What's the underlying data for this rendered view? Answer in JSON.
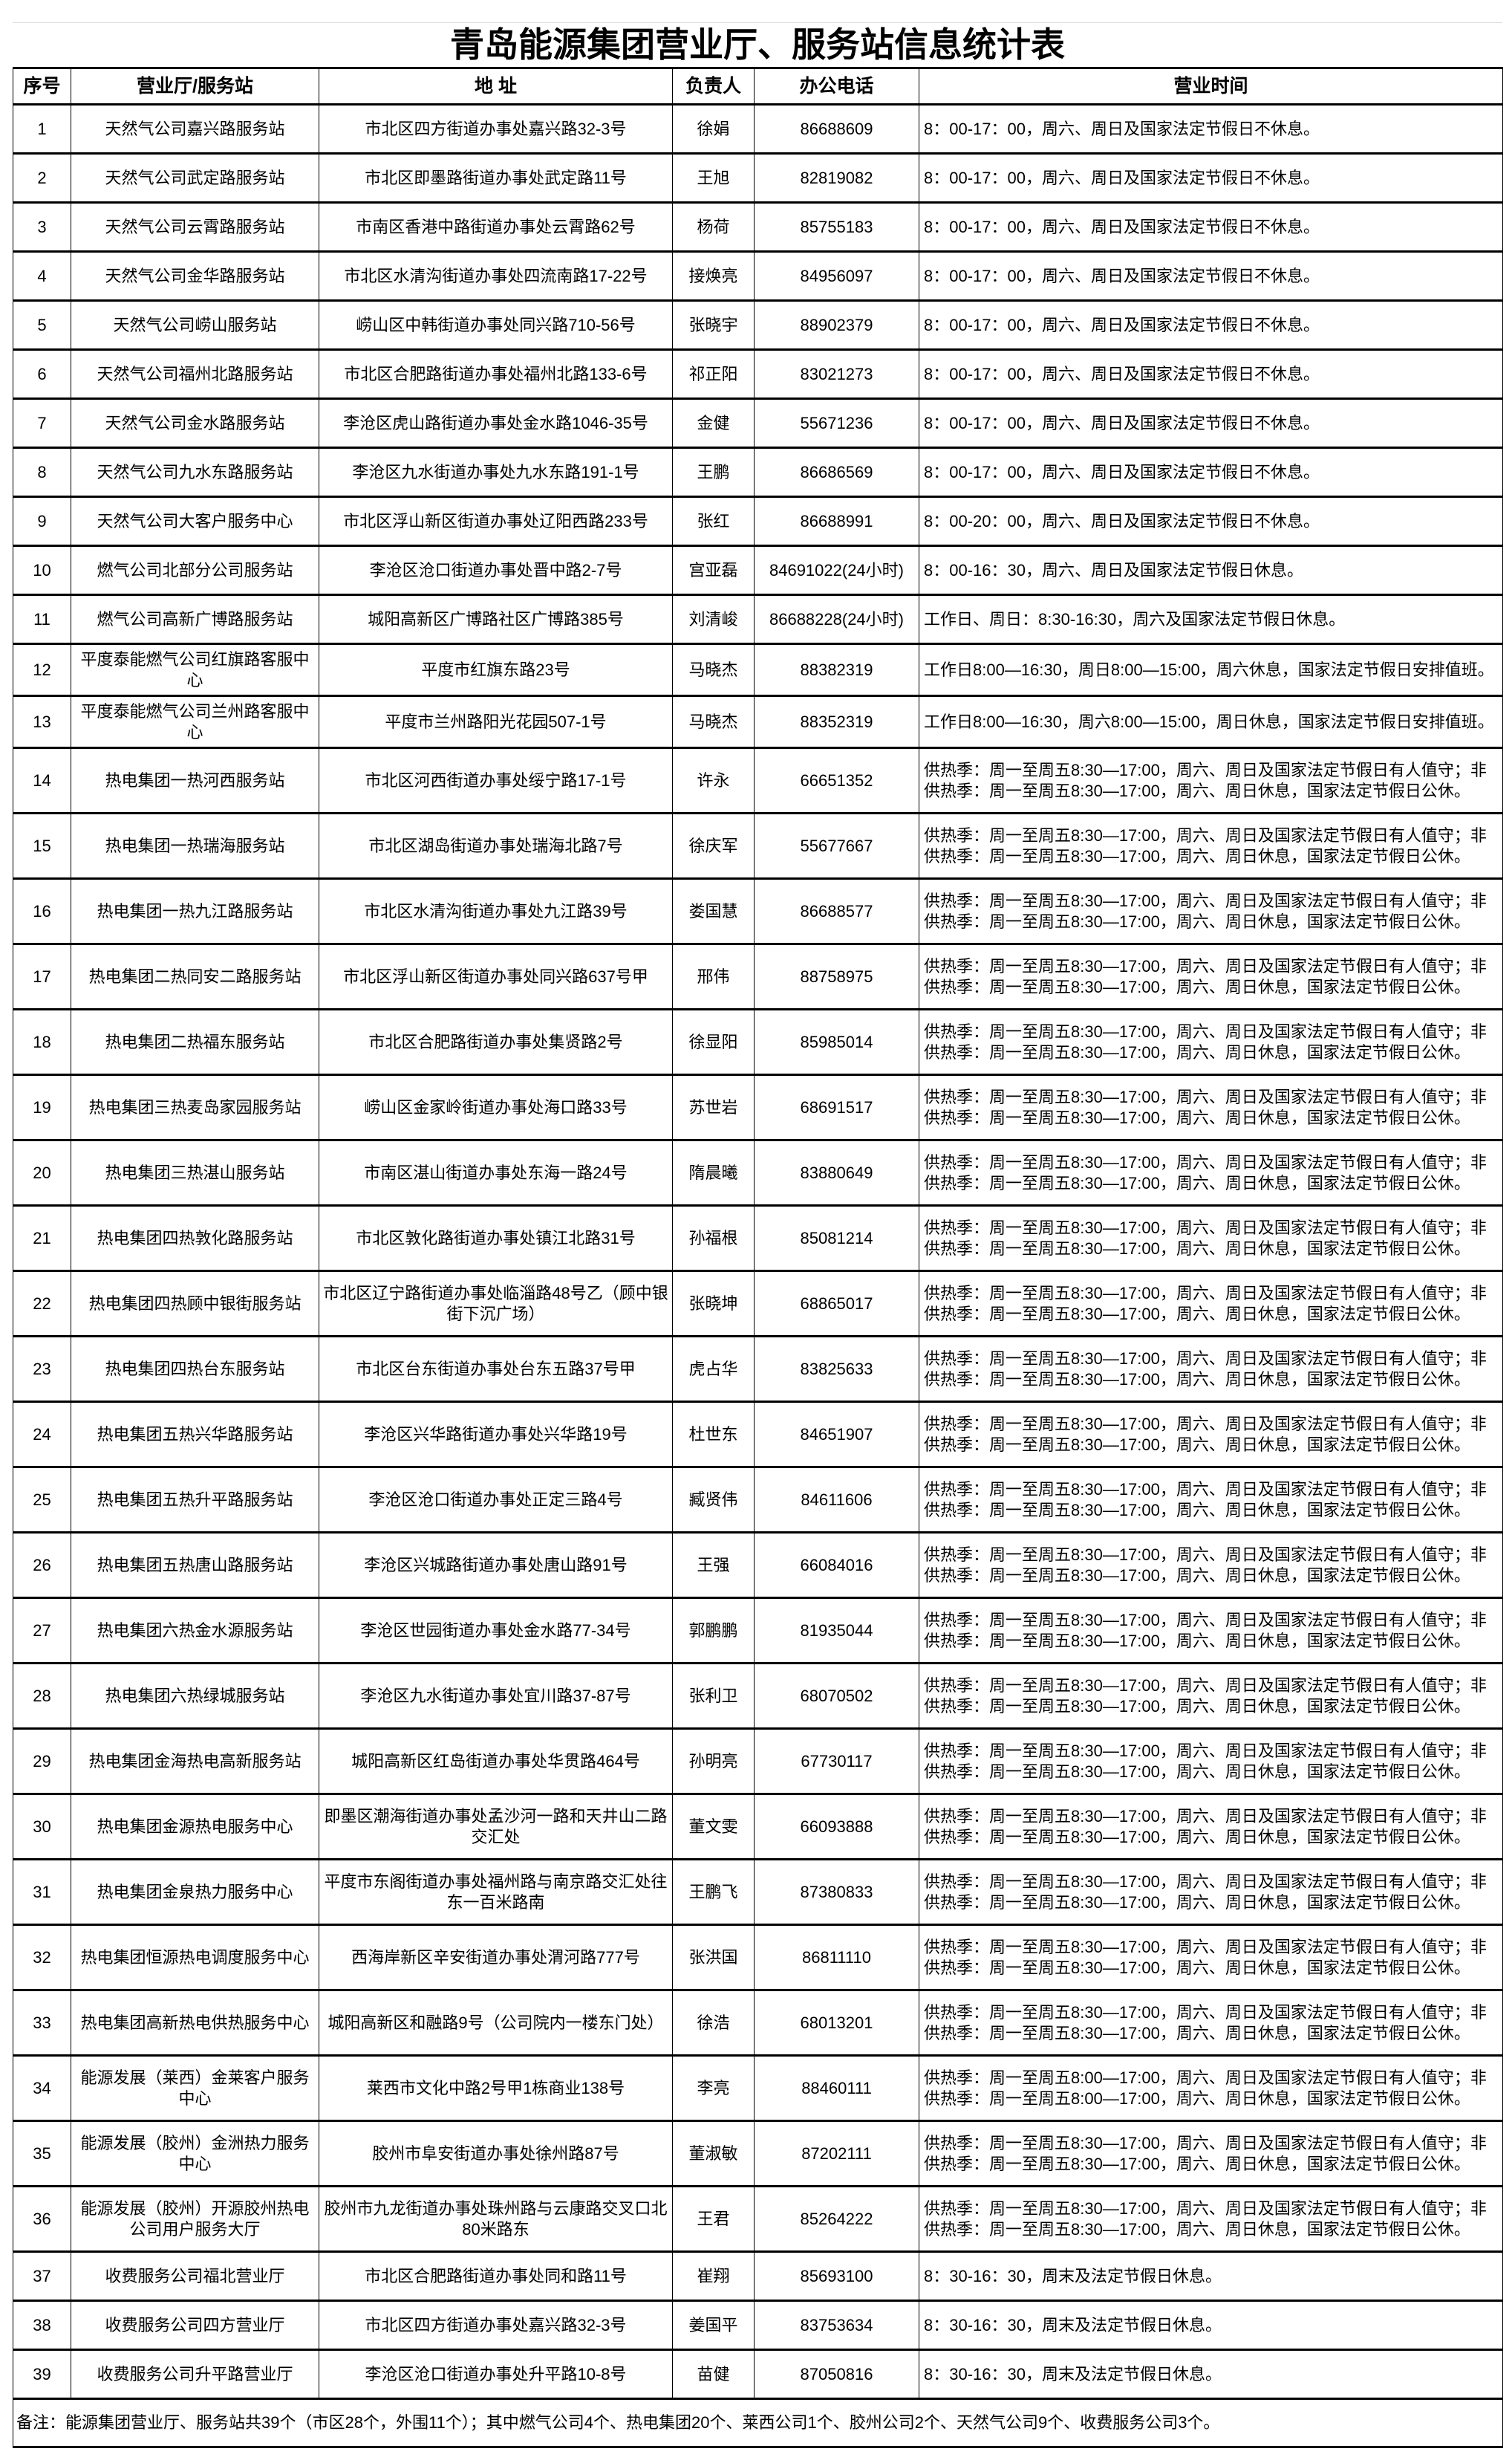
{
  "title": "青岛能源集团营业厅、服务站信息统计表",
  "headers": [
    "序号",
    "营业厅/服务站",
    "地  址",
    "负责人",
    "办公电话",
    "营业时间"
  ],
  "rows": [
    [
      "1",
      "天然气公司嘉兴路服务站",
      "市北区四方街道办事处嘉兴路32-3号",
      "徐娟",
      "86688609",
      "8：00-17：00，周六、周日及国家法定节假日不休息。"
    ],
    [
      "2",
      "天然气公司武定路服务站",
      "市北区即墨路街道办事处武定路11号",
      "王旭",
      "82819082",
      "8：00-17：00，周六、周日及国家法定节假日不休息。"
    ],
    [
      "3",
      "天然气公司云霄路服务站",
      "市南区香港中路街道办事处云霄路62号",
      "杨荷",
      "85755183",
      "8：00-17：00，周六、周日及国家法定节假日不休息。"
    ],
    [
      "4",
      "天然气公司金华路服务站",
      "市北区水清沟街道办事处四流南路17-22号",
      "接焕亮",
      "84956097",
      "8：00-17：00，周六、周日及国家法定节假日不休息。"
    ],
    [
      "5",
      "天然气公司崂山服务站",
      "崂山区中韩街道办事处同兴路710-56号",
      "张晓宇",
      "88902379",
      "8：00-17：00，周六、周日及国家法定节假日不休息。"
    ],
    [
      "6",
      "天然气公司福州北路服务站",
      "市北区合肥路街道办事处福州北路133-6号",
      "祁正阳",
      "83021273",
      "8：00-17：00，周六、周日及国家法定节假日不休息。"
    ],
    [
      "7",
      "天然气公司金水路服务站",
      "李沧区虎山路街道办事处金水路1046-35号",
      "金健",
      "55671236",
      "8：00-17：00，周六、周日及国家法定节假日不休息。"
    ],
    [
      "8",
      "天然气公司九水东路服务站",
      "李沧区九水街道办事处九水东路191-1号",
      "王鹏",
      "86686569",
      "8：00-17：00，周六、周日及国家法定节假日不休息。"
    ],
    [
      "9",
      "天然气公司大客户服务中心",
      "市北区浮山新区街道办事处辽阳西路233号",
      "张红",
      "86688991",
      "8：00-20：00，周六、周日及国家法定节假日不休息。"
    ],
    [
      "10",
      "燃气公司北部分公司服务站",
      "李沧区沧口街道办事处晋中路2-7号",
      "宫亚磊",
      "84691022(24小时)",
      "8：00-16：30，周六、周日及国家法定节假日休息。"
    ],
    [
      "11",
      "燃气公司高新广博路服务站",
      "城阳高新区广博路社区广博路385号",
      "刘清峻",
      "86688228(24小时)",
      "工作日、周日：8:30-16:30，周六及国家法定节假日休息。"
    ],
    [
      "12",
      "平度泰能燃气公司红旗路客服中心",
      "平度市红旗东路23号",
      "马晓杰",
      "88382319",
      "工作日8:00—16:30，周日8:00—15:00，周六休息，国家法定节假日安排值班。"
    ],
    [
      "13",
      "平度泰能燃气公司兰州路客服中心",
      "平度市兰州路阳光花园507-1号",
      "马晓杰",
      "88352319",
      "工作日8:00—16:30，周六8:00—15:00，周日休息，国家法定节假日安排值班。"
    ],
    [
      "14",
      "热电集团一热河西服务站",
      "市北区河西街道办事处绥宁路17-1号",
      "许永",
      "66651352",
      "供热季：周一至周五8:30—17:00，周六、周日及国家法定节假日有人值守；非供热季：周一至周五8:30—17:00，周六、周日休息，国家法定节假日公休。"
    ],
    [
      "15",
      "热电集团一热瑞海服务站",
      "市北区湖岛街道办事处瑞海北路7号",
      "徐庆军",
      "55677667",
      "供热季：周一至周五8:30—17:00，周六、周日及国家法定节假日有人值守；非供热季：周一至周五8:30—17:00，周六、周日休息，国家法定节假日公休。"
    ],
    [
      "16",
      "热电集团一热九江路服务站",
      "市北区水清沟街道办事处九江路39号",
      "娄国慧",
      "86688577",
      "供热季：周一至周五8:30—17:00，周六、周日及国家法定节假日有人值守；非供热季：周一至周五8:30—17:00，周六、周日休息，国家法定节假日公休。"
    ],
    [
      "17",
      "热电集团二热同安二路服务站",
      "市北区浮山新区街道办事处同兴路637号甲",
      "邢伟",
      "88758975",
      "供热季：周一至周五8:30—17:00，周六、周日及国家法定节假日有人值守；非供热季：周一至周五8:30—17:00，周六、周日休息，国家法定节假日公休。"
    ],
    [
      "18",
      "热电集团二热福东服务站",
      "市北区合肥路街道办事处集贤路2号",
      "徐显阳",
      "85985014",
      "供热季：周一至周五8:30—17:00，周六、周日及国家法定节假日有人值守；非供热季：周一至周五8:30—17:00，周六、周日休息，国家法定节假日公休。"
    ],
    [
      "19",
      "热电集团三热麦岛家园服务站",
      "崂山区金家岭街道办事处海口路33号",
      "苏世岩",
      "68691517",
      "供热季：周一至周五8:30—17:00，周六、周日及国家法定节假日有人值守；非供热季：周一至周五8:30—17:00，周六、周日休息，国家法定节假日公休。"
    ],
    [
      "20",
      "热电集团三热湛山服务站",
      "市南区湛山街道办事处东海一路24号",
      "隋晨曦",
      "83880649",
      "供热季：周一至周五8:30—17:00，周六、周日及国家法定节假日有人值守；非供热季：周一至周五8:30—17:00，周六、周日休息，国家法定节假日公休。"
    ],
    [
      "21",
      "热电集团四热敦化路服务站",
      "市北区敦化路街道办事处镇江北路31号",
      "孙福根",
      "85081214",
      "供热季：周一至周五8:30—17:00，周六、周日及国家法定节假日有人值守；非供热季：周一至周五8:30—17:00，周六、周日休息，国家法定节假日公休。"
    ],
    [
      "22",
      "热电集团四热顾中银街服务站",
      "市北区辽宁路街道办事处临淄路48号乙（顾中银街下沉广场）",
      "张晓坤",
      "68865017",
      "供热季：周一至周五8:30—17:00，周六、周日及国家法定节假日有人值守；非供热季：周一至周五8:30—17:00，周六、周日休息，国家法定节假日公休。"
    ],
    [
      "23",
      "热电集团四热台东服务站",
      "市北区台东街道办事处台东五路37号甲",
      "虎占华",
      "83825633",
      "供热季：周一至周五8:30—17:00，周六、周日及国家法定节假日有人值守；非供热季：周一至周五8:30—17:00，周六、周日休息，国家法定节假日公休。"
    ],
    [
      "24",
      "热电集团五热兴华路服务站",
      "李沧区兴华路街道办事处兴华路19号",
      "杜世东",
      "84651907",
      "供热季：周一至周五8:30—17:00，周六、周日及国家法定节假日有人值守；非供热季：周一至周五8:30—17:00，周六、周日休息，国家法定节假日公休。"
    ],
    [
      "25",
      "热电集团五热升平路服务站",
      "李沧区沧口街道办事处正定三路4号",
      "臧贤伟",
      "84611606",
      "供热季：周一至周五8:30—17:00，周六、周日及国家法定节假日有人值守；非供热季：周一至周五8:30—17:00，周六、周日休息，国家法定节假日公休。"
    ],
    [
      "26",
      "热电集团五热唐山路服务站",
      "李沧区兴城路街道办事处唐山路91号",
      "王强",
      "66084016",
      "供热季：周一至周五8:30—17:00，周六、周日及国家法定节假日有人值守；非供热季：周一至周五8:30—17:00，周六、周日休息，国家法定节假日公休。"
    ],
    [
      "27",
      "热电集团六热金水源服务站",
      "李沧区世园街道办事处金水路77-34号",
      "郭鹏鹏",
      "81935044",
      "供热季：周一至周五8:30—17:00，周六、周日及国家法定节假日有人值守；非供热季：周一至周五8:30—17:00，周六、周日休息，国家法定节假日公休。"
    ],
    [
      "28",
      "热电集团六热绿城服务站",
      "李沧区九水街道办事处宜川路37-87号",
      "张利卫",
      "68070502",
      "供热季：周一至周五8:30—17:00，周六、周日及国家法定节假日有人值守；非供热季：周一至周五8:30—17:00，周六、周日休息，国家法定节假日公休。"
    ],
    [
      "29",
      "热电集团金海热电高新服务站",
      "城阳高新区红岛街道办事处华贯路464号",
      "孙明亮",
      "67730117",
      "供热季：周一至周五8:30—17:00，周六、周日及国家法定节假日有人值守；非供热季：周一至周五8:30—17:00，周六、周日休息，国家法定节假日公休。"
    ],
    [
      "30",
      "热电集团金源热电服务中心",
      "即墨区潮海街道办事处孟沙河一路和天井山二路交汇处",
      "董文雯",
      "66093888",
      "供热季：周一至周五8:30—17:00，周六、周日及国家法定节假日有人值守；非供热季：周一至周五8:30—17:00，周六、周日休息，国家法定节假日公休。"
    ],
    [
      "31",
      "热电集团金泉热力服务中心",
      "平度市东阁街道办事处福州路与南京路交汇处往东一百米路南",
      "王鹏飞",
      "87380833",
      "供热季：周一至周五8:30—17:00，周六、周日及国家法定节假日有人值守；非供热季：周一至周五8:30—17:00，周六、周日休息，国家法定节假日公休。"
    ],
    [
      "32",
      "热电集团恒源热电调度服务中心",
      "西海岸新区辛安街道办事处渭河路777号",
      "张洪国",
      "86811110",
      "供热季：周一至周五8:30—17:00，周六、周日及国家法定节假日有人值守；非供热季：周一至周五8:30—17:00，周六、周日休息，国家法定节假日公休。"
    ],
    [
      "33",
      "热电集团高新热电供热服务中心",
      "城阳高新区和融路9号（公司院内一楼东门处）",
      "徐浩",
      "68013201",
      "供热季：周一至周五8:30—17:00，周六、周日及国家法定节假日有人值守；非供热季：周一至周五8:30—17:00，周六、周日休息，国家法定节假日公休。"
    ],
    [
      "34",
      "能源发展（莱西）金莱客户服务中心",
      "莱西市文化中路2号甲1栋商业138号",
      "李亮",
      "88460111",
      "供热季：周一至周五8:00—17:00，周六、周日及国家法定节假日有人值守；非供热季：周一至周五8:00—17:00，周六、周日休息，国家法定节假日公休。"
    ],
    [
      "35",
      "能源发展（胶州）金洲热力服务中心",
      "胶州市阜安街道办事处徐州路87号",
      "董淑敏",
      "87202111",
      "供热季：周一至周五8:30—17:00，周六、周日及国家法定节假日有人值守；非供热季：周一至周五8:30—17:00，周六、周日休息，国家法定节假日公休。"
    ],
    [
      "36",
      "能源发展（胶州）开源胶州热电公司用户服务大厅",
      "胶州市九龙街道办事处珠州路与云康路交叉口北80米路东",
      "王君",
      "85264222",
      "供热季：周一至周五8:30—17:00，周六、周日及国家法定节假日有人值守；非供热季：周一至周五8:30—17:00，周六、周日休息，国家法定节假日公休。"
    ],
    [
      "37",
      "收费服务公司福北营业厅",
      "市北区合肥路街道办事处同和路11号",
      "崔翔",
      "85693100",
      "8：30-16：30，周末及法定节假日休息。"
    ],
    [
      "38",
      "收费服务公司四方营业厅",
      "市北区四方街道办事处嘉兴路32-3号",
      "姜国平",
      "83753634",
      "8：30-16：30，周末及法定节假日休息。"
    ],
    [
      "39",
      "收费服务公司升平路营业厅",
      "李沧区沧口街道办事处升平路10-8号",
      "苗健",
      "87050816",
      "8：30-16：30，周末及法定节假日休息。"
    ]
  ],
  "note": "备注：能源集团营业厅、服务站共39个（市区28个，外围11个）；其中燃气公司4个、热电集团20个、莱西公司1个、胶州公司2个、天然气公司9个、收费服务公司3个。"
}
